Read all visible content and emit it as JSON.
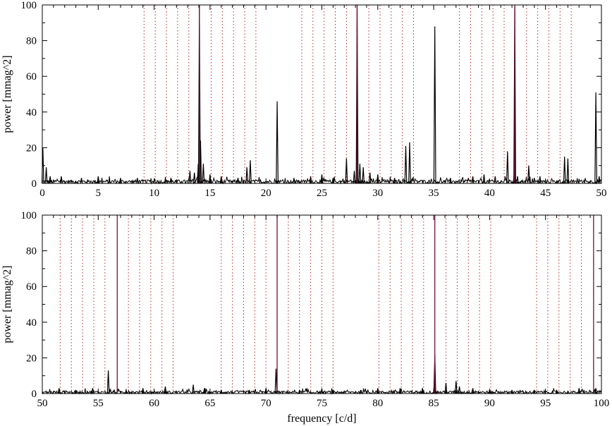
{
  "chart_data": [
    {
      "type": "line",
      "panel": "top",
      "xlabel": "",
      "ylabel": "power [mmag^2]",
      "xlim": [
        0,
        50
      ],
      "ylim": [
        0,
        100
      ],
      "x_ticks": [
        0,
        5,
        10,
        15,
        20,
        25,
        30,
        35,
        40,
        45,
        50
      ],
      "y_ticks": [
        0,
        20,
        40,
        60,
        80,
        100
      ],
      "grid": false,
      "noise_level": 2,
      "peaks": [
        {
          "x": 0.05,
          "y": 20
        },
        {
          "x": 0.35,
          "y": 9
        },
        {
          "x": 0.7,
          "y": 4
        },
        {
          "x": 1.7,
          "y": 4
        },
        {
          "x": 3.5,
          "y": 3
        },
        {
          "x": 5.0,
          "y": 4
        },
        {
          "x": 7.0,
          "y": 3
        },
        {
          "x": 8.5,
          "y": 3
        },
        {
          "x": 11.5,
          "y": 3
        },
        {
          "x": 13.2,
          "y": 7
        },
        {
          "x": 13.6,
          "y": 6
        },
        {
          "x": 13.95,
          "y": 11
        },
        {
          "x": 14.05,
          "y": 100
        },
        {
          "x": 14.15,
          "y": 24
        },
        {
          "x": 14.4,
          "y": 11
        },
        {
          "x": 15.0,
          "y": 5
        },
        {
          "x": 16.0,
          "y": 4
        },
        {
          "x": 17.5,
          "y": 3
        },
        {
          "x": 18.3,
          "y": 9
        },
        {
          "x": 18.6,
          "y": 13
        },
        {
          "x": 21.0,
          "y": 46
        },
        {
          "x": 22.5,
          "y": 3
        },
        {
          "x": 24.0,
          "y": 4
        },
        {
          "x": 25.0,
          "y": 5
        },
        {
          "x": 26.0,
          "y": 3
        },
        {
          "x": 27.2,
          "y": 14
        },
        {
          "x": 27.9,
          "y": 7
        },
        {
          "x": 28.15,
          "y": 100
        },
        {
          "x": 28.4,
          "y": 11
        },
        {
          "x": 28.7,
          "y": 9
        },
        {
          "x": 29.3,
          "y": 6
        },
        {
          "x": 30.0,
          "y": 5
        },
        {
          "x": 31.5,
          "y": 3
        },
        {
          "x": 32.5,
          "y": 21
        },
        {
          "x": 32.85,
          "y": 23
        },
        {
          "x": 35.1,
          "y": 88
        },
        {
          "x": 36.5,
          "y": 3
        },
        {
          "x": 38.5,
          "y": 4
        },
        {
          "x": 39.5,
          "y": 5
        },
        {
          "x": 40.5,
          "y": 4
        },
        {
          "x": 41.6,
          "y": 18
        },
        {
          "x": 42.2,
          "y": 5
        },
        {
          "x": 42.25,
          "y": 100
        },
        {
          "x": 42.5,
          "y": 4
        },
        {
          "x": 43.5,
          "y": 10
        },
        {
          "x": 44.5,
          "y": 4
        },
        {
          "x": 46.7,
          "y": 15
        },
        {
          "x": 47.0,
          "y": 14
        },
        {
          "x": 49.5,
          "y": 51
        },
        {
          "x": 49.8,
          "y": 4
        }
      ],
      "reference_lines_solid": [
        14.05,
        28.15,
        42.25
      ],
      "reference_lines_dotted": [
        9.1,
        10.1,
        11.1,
        12.1,
        13.1,
        15.1,
        16.1,
        17.1,
        18.1,
        19.1,
        23.2,
        24.2,
        25.2,
        26.2,
        27.2,
        29.2,
        30.2,
        31.2,
        32.2,
        33.2,
        37.3,
        38.3,
        39.3,
        40.3,
        41.3,
        43.3,
        44.3,
        45.3,
        46.3,
        47.3
      ]
    },
    {
      "type": "line",
      "panel": "bottom",
      "xlabel": "frequency [c/d]",
      "ylabel": "power [mmag^2]",
      "xlim": [
        50,
        100
      ],
      "ylim": [
        0,
        100
      ],
      "x_ticks": [
        50,
        55,
        60,
        65,
        70,
        75,
        80,
        85,
        90,
        95,
        100
      ],
      "y_ticks": [
        0,
        20,
        40,
        60,
        80,
        100
      ],
      "grid": false,
      "noise_level": 1.5,
      "peaks": [
        {
          "x": 51.5,
          "y": 3
        },
        {
          "x": 53.0,
          "y": 2
        },
        {
          "x": 54.5,
          "y": 3
        },
        {
          "x": 55.9,
          "y": 13
        },
        {
          "x": 57.5,
          "y": 2
        },
        {
          "x": 59.0,
          "y": 3
        },
        {
          "x": 61.0,
          "y": 4
        },
        {
          "x": 63.5,
          "y": 5
        },
        {
          "x": 64.5,
          "y": 3
        },
        {
          "x": 66.0,
          "y": 2
        },
        {
          "x": 68.5,
          "y": 2
        },
        {
          "x": 70.0,
          "y": 3
        },
        {
          "x": 70.9,
          "y": 14
        },
        {
          "x": 73.0,
          "y": 2
        },
        {
          "x": 76.0,
          "y": 2
        },
        {
          "x": 78.5,
          "y": 2
        },
        {
          "x": 80.0,
          "y": 3
        },
        {
          "x": 82.0,
          "y": 3
        },
        {
          "x": 84.0,
          "y": 3
        },
        {
          "x": 85.1,
          "y": 22
        },
        {
          "x": 86.1,
          "y": 6
        },
        {
          "x": 87.0,
          "y": 7
        },
        {
          "x": 87.3,
          "y": 4
        },
        {
          "x": 88.5,
          "y": 3
        },
        {
          "x": 90.0,
          "y": 2
        },
        {
          "x": 92.0,
          "y": 2
        },
        {
          "x": 94.0,
          "y": 2
        },
        {
          "x": 96.0,
          "y": 2
        },
        {
          "x": 98.0,
          "y": 3
        },
        {
          "x": 99.5,
          "y": 3
        }
      ],
      "reference_lines_solid": [
        56.7,
        71.0,
        85.1,
        99.3
      ],
      "reference_lines_dotted": [
        51.6,
        52.6,
        53.6,
        54.6,
        55.6,
        57.7,
        58.7,
        59.7,
        60.7,
        61.7,
        66.0,
        67.0,
        68.0,
        69.0,
        70.0,
        72.0,
        73.0,
        74.0,
        75.0,
        76.0,
        80.1,
        81.1,
        82.1,
        83.1,
        84.1,
        86.1,
        87.1,
        88.1,
        89.1,
        90.1,
        94.2,
        95.2,
        96.2,
        97.2,
        98.2
      ]
    }
  ],
  "colors": {
    "spectrum": "#000000",
    "solid_reference": "#7a0f3a",
    "dotted_reference": "#b5282a",
    "axes": "#000000"
  }
}
